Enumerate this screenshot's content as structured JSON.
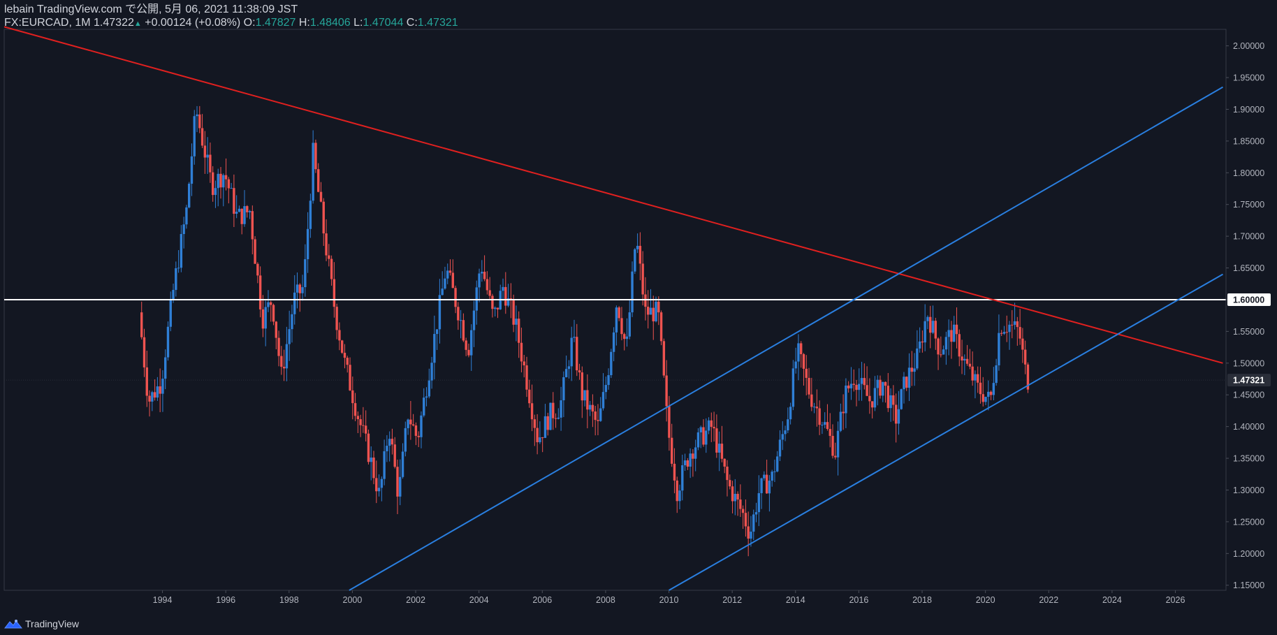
{
  "header": {
    "line1": "lebain TradingView.com で公開, 5月 06, 2021 11:38:09 JST",
    "symbol": "FX:EURCAD, 1M",
    "last": "1.47322",
    "change": "+0.00124 (+0.08%)",
    "o_label": "O:",
    "o_value": "1.47827",
    "h_label": "H:",
    "h_value": "1.48406",
    "l_label": "L:",
    "l_value": "1.47044",
    "c_label": "C:",
    "c_value": "1.47321"
  },
  "footer": {
    "brand": "TradingView"
  },
  "colors": {
    "up": "#2f7fd6",
    "down": "#ef5350",
    "resistance": "#e0201f",
    "channel": "#2a7fe0",
    "level": "#ffffff"
  },
  "chart_data": {
    "type": "candlestick",
    "symbol": "FX:EURCAD",
    "interval": "1M",
    "x_ticks": [
      "1994",
      "1996",
      "1998",
      "2000",
      "2002",
      "2004",
      "2006",
      "2008",
      "2010",
      "2012",
      "2014",
      "2016",
      "2018",
      "2020",
      "2022",
      "2024",
      "2026"
    ],
    "y_ticks": [
      "1.15000",
      "1.20000",
      "1.25000",
      "1.30000",
      "1.35000",
      "1.40000",
      "1.45000",
      "1.50000",
      "1.55000",
      "1.60000",
      "1.65000",
      "1.70000",
      "1.75000",
      "1.80000",
      "1.85000",
      "1.90000",
      "1.95000",
      "2.00000"
    ],
    "xlim": [
      1989.0,
      2027.6
    ],
    "ylim": [
      1.142,
      2.026
    ],
    "horizontal_level": {
      "value": 1.6,
      "label": "1.60000"
    },
    "last_price_label": "1.47321",
    "last_price": 1.4732,
    "trendlines": [
      {
        "name": "resistance",
        "points": [
          [
            1989.0,
            2.03
          ],
          [
            2027.5,
            1.5
          ]
        ]
      },
      {
        "name": "channel-upper",
        "points": [
          [
            1999.9,
            1.142
          ],
          [
            2027.5,
            1.935
          ]
        ]
      },
      {
        "name": "channel-lower",
        "points": [
          [
            2010.0,
            1.142
          ],
          [
            2027.5,
            1.64
          ]
        ]
      }
    ],
    "anchors": [
      [
        1993.3,
        1.58
      ],
      [
        1993.6,
        1.44
      ],
      [
        1994.0,
        1.47
      ],
      [
        1994.4,
        1.62
      ],
      [
        1994.8,
        1.74
      ],
      [
        1995.1,
        1.9
      ],
      [
        1995.6,
        1.78
      ],
      [
        1996.0,
        1.8
      ],
      [
        1996.4,
        1.73
      ],
      [
        1996.8,
        1.74
      ],
      [
        1997.2,
        1.57
      ],
      [
        1997.5,
        1.6
      ],
      [
        1997.8,
        1.48
      ],
      [
        1998.2,
        1.6
      ],
      [
        1998.5,
        1.62
      ],
      [
        1998.8,
        1.83
      ],
      [
        1999.1,
        1.72
      ],
      [
        1999.5,
        1.58
      ],
      [
        1999.8,
        1.5
      ],
      [
        2000.2,
        1.42
      ],
      [
        2000.6,
        1.35
      ],
      [
        2000.9,
        1.29
      ],
      [
        2001.2,
        1.4
      ],
      [
        2001.5,
        1.29
      ],
      [
        2001.8,
        1.42
      ],
      [
        2002.1,
        1.38
      ],
      [
        2002.6,
        1.53
      ],
      [
        2003.0,
        1.65
      ],
      [
        2003.4,
        1.58
      ],
      [
        2003.7,
        1.52
      ],
      [
        2004.1,
        1.66
      ],
      [
        2004.5,
        1.57
      ],
      [
        2004.8,
        1.62
      ],
      [
        2005.2,
        1.56
      ],
      [
        2005.6,
        1.46
      ],
      [
        2005.9,
        1.38
      ],
      [
        2006.3,
        1.42
      ],
      [
        2006.6,
        1.43
      ],
      [
        2007.0,
        1.54
      ],
      [
        2007.3,
        1.45
      ],
      [
        2007.8,
        1.4
      ],
      [
        2008.1,
        1.48
      ],
      [
        2008.4,
        1.6
      ],
      [
        2008.7,
        1.52
      ],
      [
        2009.0,
        1.7
      ],
      [
        2009.3,
        1.58
      ],
      [
        2009.7,
        1.58
      ],
      [
        2010.0,
        1.4
      ],
      [
        2010.3,
        1.3
      ],
      [
        2010.7,
        1.36
      ],
      [
        2011.0,
        1.38
      ],
      [
        2011.4,
        1.4
      ],
      [
        2011.9,
        1.31
      ],
      [
        2012.4,
        1.26
      ],
      [
        2012.6,
        1.23
      ],
      [
        2012.9,
        1.3
      ],
      [
        2013.3,
        1.32
      ],
      [
        2013.8,
        1.42
      ],
      [
        2014.1,
        1.52
      ],
      [
        2014.5,
        1.45
      ],
      [
        2014.9,
        1.41
      ],
      [
        2015.3,
        1.36
      ],
      [
        2015.6,
        1.45
      ],
      [
        2015.9,
        1.48
      ],
      [
        2016.4,
        1.44
      ],
      [
        2016.8,
        1.47
      ],
      [
        2017.2,
        1.41
      ],
      [
        2017.5,
        1.47
      ],
      [
        2017.9,
        1.51
      ],
      [
        2018.2,
        1.58
      ],
      [
        2018.6,
        1.52
      ],
      [
        2019.0,
        1.55
      ],
      [
        2019.4,
        1.5
      ],
      [
        2019.8,
        1.46
      ],
      [
        2020.2,
        1.44
      ],
      [
        2020.5,
        1.56
      ],
      [
        2020.8,
        1.56
      ],
      [
        2021.1,
        1.55
      ],
      [
        2021.35,
        1.4732
      ]
    ]
  }
}
